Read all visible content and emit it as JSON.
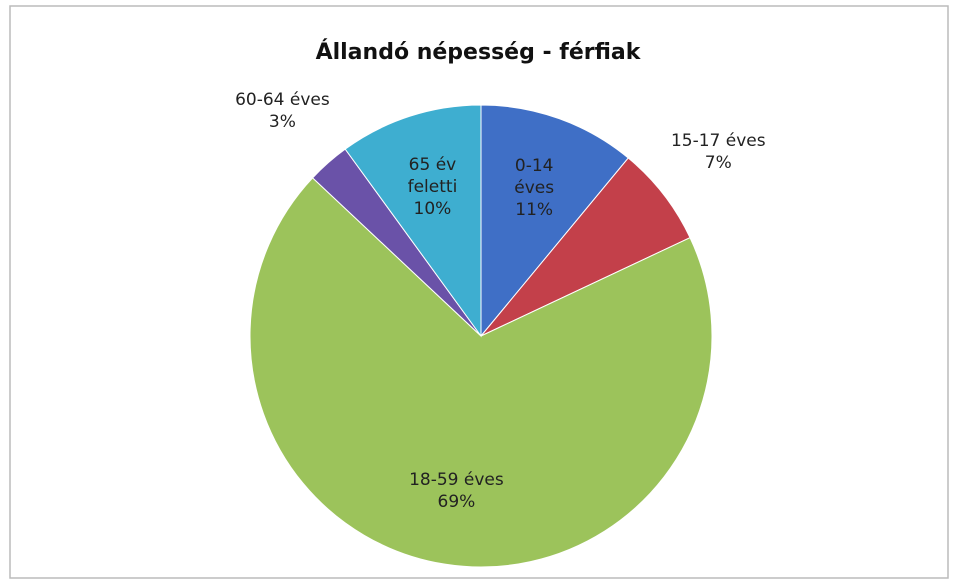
{
  "chart_data": {
    "type": "pie",
    "title": "Állandó népesség - férfiak",
    "categories": [
      "0-14 éves",
      "15-17 éves",
      "18-59 éves",
      "60-64 éves",
      "65 év feletti"
    ],
    "values": [
      11,
      7,
      69,
      3,
      10
    ],
    "value_labels": [
      "11%",
      "7%",
      "69%",
      "3%",
      "10%"
    ],
    "colors": [
      "#3f6fc6",
      "#c3404a",
      "#9cc35b",
      "#6a52a8",
      "#3eaed0"
    ]
  }
}
